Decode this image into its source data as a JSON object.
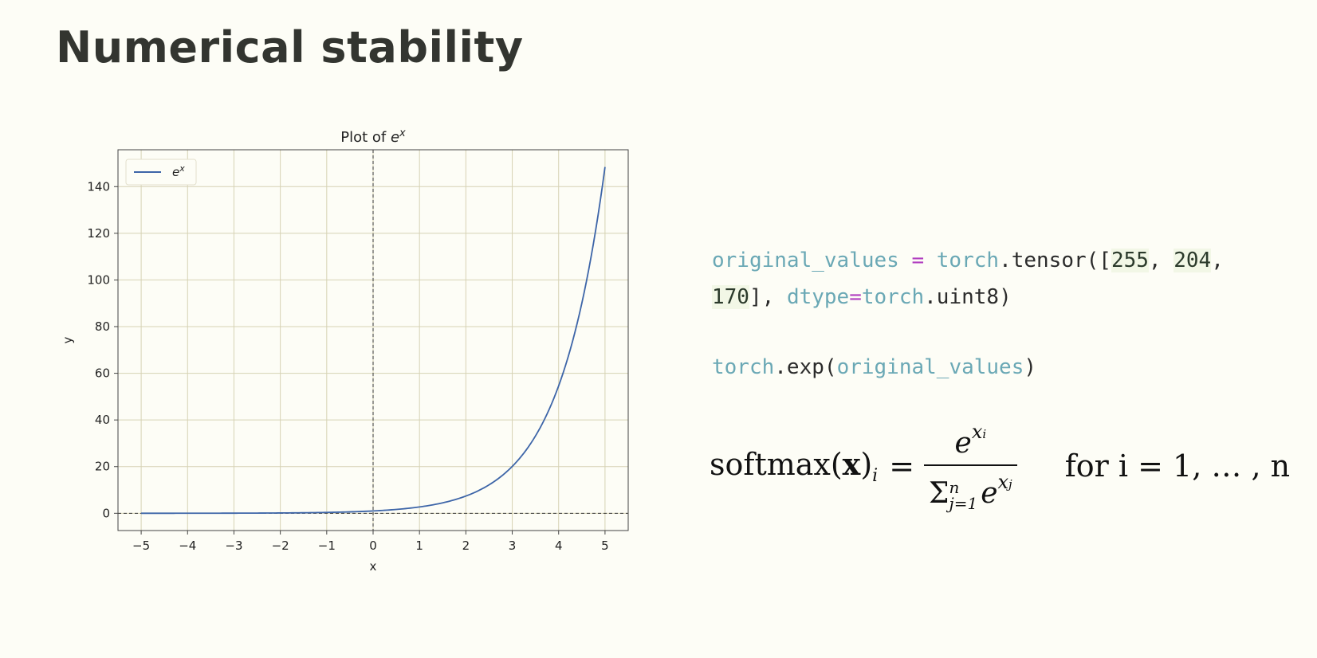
{
  "slide": {
    "title": "Numerical stability"
  },
  "code": {
    "line1": {
      "var": "original_values",
      "op": "=",
      "obj": "torch",
      "call": ".tensor([",
      "n1": "255",
      "sep1": ", ",
      "n2": "204",
      "sep2": ","
    },
    "line2": {
      "n3": "170",
      "close": "], ",
      "kw": "dtype",
      "op": "=",
      "obj": "torch",
      "rest": ".uint8)"
    },
    "line3": {
      "obj": "torch",
      "call": ".exp(",
      "arg": "original_values",
      "close": ")"
    }
  },
  "formula": {
    "lhs": "softmax(",
    "x": "x",
    "rparen": ")",
    "sub_i": "i",
    "eq": "=",
    "num_base": "e",
    "num_sup": "x",
    "num_sup_sub": "i",
    "den_sigma": "Σ",
    "den_sup": "n",
    "den_sub": "j=1",
    "den_base": "e",
    "den_sup2": "x",
    "den_sup2_sub": "j",
    "tail": "for i = 1, … , n"
  },
  "chart_data": {
    "type": "line",
    "title": "Plot of e^x",
    "xlabel": "x",
    "ylabel": "y",
    "xlim": [
      -5.5,
      5.5
    ],
    "ylim": [
      -7.4,
      155.8
    ],
    "xticks": [
      -5,
      -4,
      -3,
      -2,
      -1,
      0,
      1,
      2,
      3,
      4,
      5
    ],
    "xtick_labels": [
      "−5",
      "−4",
      "−3",
      "−2",
      "−1",
      "0",
      "1",
      "2",
      "3",
      "4",
      "5"
    ],
    "yticks": [
      0,
      20,
      40,
      60,
      80,
      100,
      120,
      140
    ],
    "grid": true,
    "legend": "upper-left",
    "reference_lines": {
      "x": 0,
      "y": 0
    },
    "series": [
      {
        "name": "e^x",
        "color": "#3d65a8",
        "function": "exp",
        "x": [
          -5,
          -4,
          -3,
          -2,
          -1,
          0,
          1,
          2,
          3,
          4,
          5
        ],
        "values": [
          0.0067,
          0.018,
          0.05,
          0.135,
          0.368,
          1,
          2.718,
          7.389,
          20.09,
          54.6,
          148.4
        ]
      }
    ],
    "colors": {
      "grid": "#d6d2b4",
      "axes": "#444444",
      "background": "#fdfdf6"
    }
  }
}
